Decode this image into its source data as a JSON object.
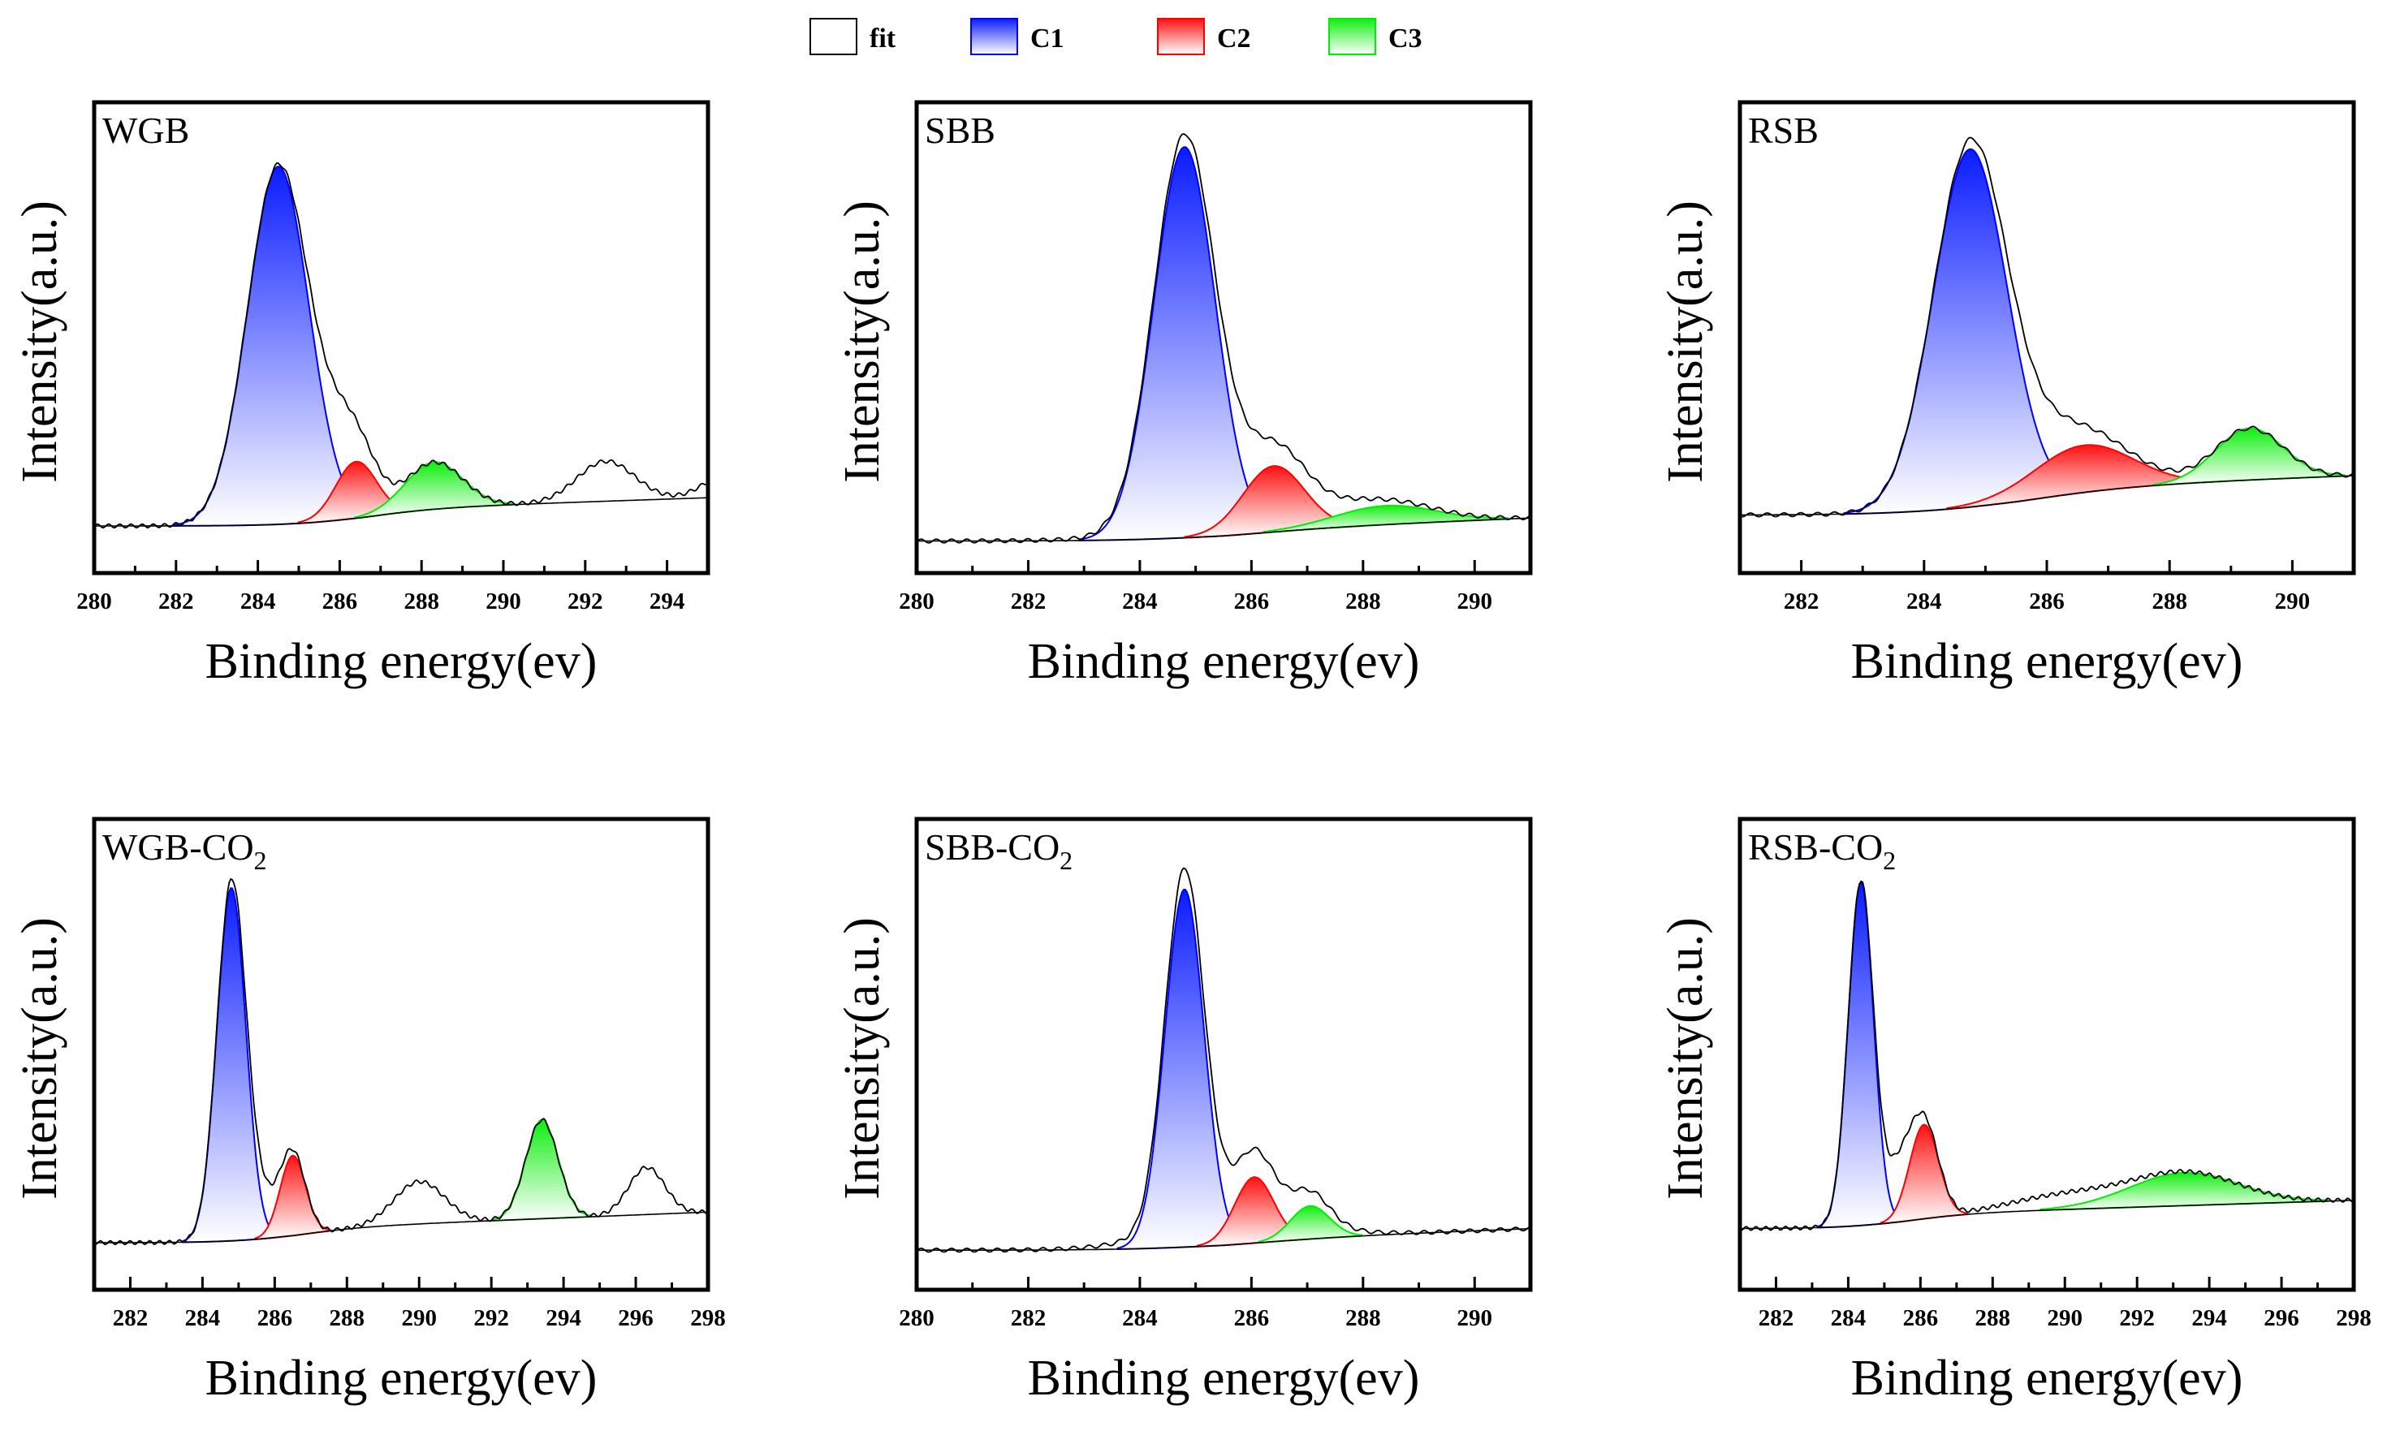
{
  "legend": {
    "position": "top-center",
    "items": [
      {
        "label": "fit",
        "color": "#000000"
      },
      {
        "label": "C1",
        "color": "#0000ff"
      },
      {
        "label": "C2",
        "color": "#ff0000"
      },
      {
        "label": "C3",
        "color": "#00ee00"
      }
    ]
  },
  "chart_data": [
    {
      "type": "line",
      "title": "WGB",
      "title_sub": "",
      "xlabel": "Binding energy(ev)",
      "ylabel": "Intensity(a.u.)",
      "xlim": [
        280,
        295
      ],
      "ylim": [
        0,
        1
      ],
      "xticks": [
        280,
        282,
        284,
        286,
        288,
        290,
        292,
        294
      ],
      "baseline": {
        "start": 0.1,
        "end": 0.16,
        "step_center": 286.5,
        "step_value": 0.135
      },
      "peaks": [
        {
          "name": "C1",
          "center": 284.5,
          "height": 0.76,
          "sigma": 0.75
        },
        {
          "name": "C2",
          "center": 286.4,
          "height": 0.12,
          "sigma": 0.5
        },
        {
          "name": "C3",
          "center": 288.3,
          "height": 0.1,
          "sigma": 0.7
        }
      ],
      "unfitted": [
        {
          "center": 285.9,
          "height": 0.08,
          "sigma": 0.6
        },
        {
          "center": 292.5,
          "height": 0.085,
          "sigma": 0.7
        },
        {
          "center": 295.3,
          "height": 0.04,
          "sigma": 0.5
        }
      ]
    },
    {
      "type": "line",
      "title": "SBB",
      "title_sub": "",
      "xlabel": "Binding energy(ev)",
      "ylabel": "Intensity(a.u.)",
      "xlim": [
        280,
        291
      ],
      "ylim": [
        0,
        1
      ],
      "xticks": [
        280,
        282,
        284,
        286,
        288,
        290
      ],
      "baseline": {
        "start": 0.068,
        "end": 0.117,
        "step_center": 285.5,
        "step_value": 0.09
      },
      "peaks": [
        {
          "name": "C1",
          "center": 284.8,
          "height": 0.83,
          "sigma": 0.55
        },
        {
          "name": "C2",
          "center": 286.4,
          "height": 0.14,
          "sigma": 0.55
        },
        {
          "name": "C3",
          "center": 288.4,
          "height": 0.04,
          "sigma": 0.9
        }
      ],
      "unfitted": [
        {
          "center": 286.2,
          "height": 0.04,
          "sigma": 1.5
        }
      ]
    },
    {
      "type": "line",
      "title": "RSB",
      "title_sub": "",
      "xlabel": "Binding energy(ev)",
      "ylabel": "Intensity(a.u.)",
      "xlim": [
        281,
        291
      ],
      "ylim": [
        0,
        1
      ],
      "xticks": [
        282,
        284,
        286,
        288,
        290
      ],
      "baseline": {
        "start": 0.123,
        "end": 0.207,
        "step_center": 285.5,
        "step_value": 0.18
      },
      "peaks": [
        {
          "name": "C1",
          "center": 284.75,
          "height": 0.76,
          "sigma": 0.6
        },
        {
          "name": "C2",
          "center": 286.6,
          "height": 0.1,
          "sigma": 0.8
        },
        {
          "name": "C3",
          "center": 289.3,
          "height": 0.11,
          "sigma": 0.55
        }
      ],
      "unfitted": [
        {
          "center": 286.0,
          "height": 0.05,
          "sigma": 0.8
        }
      ]
    },
    {
      "type": "line",
      "title": "WGB-CO",
      "title_sub": "2",
      "xlabel": "Binding energy(ev)",
      "ylabel": "Intensity(a.u.)",
      "xlim": [
        281,
        298
      ],
      "ylim": [
        0,
        1
      ],
      "xticks": [
        282,
        284,
        286,
        288,
        290,
        292,
        294,
        296,
        298
      ],
      "baseline": {
        "start": 0.1,
        "end": 0.165,
        "step_center": 286.5,
        "step_value": 0.13
      },
      "peaks": [
        {
          "name": "C1",
          "center": 284.8,
          "height": 0.75,
          "sigma": 0.4
        },
        {
          "name": "C2",
          "center": 286.5,
          "height": 0.17,
          "sigma": 0.35
        },
        {
          "name": "C3",
          "center": 293.4,
          "height": 0.21,
          "sigma": 0.45
        }
      ],
      "unfitted": [
        {
          "center": 285.6,
          "height": 0.07,
          "sigma": 0.5
        },
        {
          "center": 290.0,
          "height": 0.09,
          "sigma": 0.7
        },
        {
          "center": 296.3,
          "height": 0.1,
          "sigma": 0.5
        }
      ]
    },
    {
      "type": "line",
      "title": "SBB-CO",
      "title_sub": "2",
      "xlabel": "Binding energy(ev)",
      "ylabel": "Intensity(a.u.)",
      "xlim": [
        280,
        291
      ],
      "ylim": [
        0,
        1
      ],
      "xticks": [
        280,
        282,
        284,
        286,
        288,
        290
      ],
      "baseline": {
        "start": 0.084,
        "end": 0.13,
        "step_center": 285.5,
        "step_value": 0.105
      },
      "peaks": [
        {
          "name": "C1",
          "center": 284.8,
          "height": 0.76,
          "sigma": 0.35
        },
        {
          "name": "C2",
          "center": 286.05,
          "height": 0.14,
          "sigma": 0.35
        },
        {
          "name": "C3",
          "center": 287.05,
          "height": 0.07,
          "sigma": 0.35
        }
      ],
      "unfitted": [
        {
          "center": 285.7,
          "height": 0.06,
          "sigma": 1.2
        }
      ]
    },
    {
      "type": "line",
      "title": "RSB-CO",
      "title_sub": "2",
      "xlabel": "Binding energy(ev)",
      "ylabel": "Intensity(a.u.)",
      "xlim": [
        281,
        298
      ],
      "ylim": [
        0,
        1
      ],
      "xticks": [
        282,
        284,
        286,
        288,
        290,
        292,
        294,
        296,
        298
      ],
      "baseline": {
        "start": 0.13,
        "end": 0.19,
        "step_center": 285.5,
        "step_value": 0.16
      },
      "peaks": [
        {
          "name": "C1",
          "center": 284.35,
          "height": 0.73,
          "sigma": 0.35
        },
        {
          "name": "C2",
          "center": 286.1,
          "height": 0.2,
          "sigma": 0.4
        },
        {
          "name": "C3",
          "center": 293.3,
          "height": 0.07,
          "sigma": 1.5
        }
      ],
      "unfitted": [
        {
          "center": 285.4,
          "height": 0.1,
          "sigma": 0.4
        },
        {
          "center": 290.0,
          "height": 0.03,
          "sigma": 1.5
        }
      ]
    }
  ]
}
